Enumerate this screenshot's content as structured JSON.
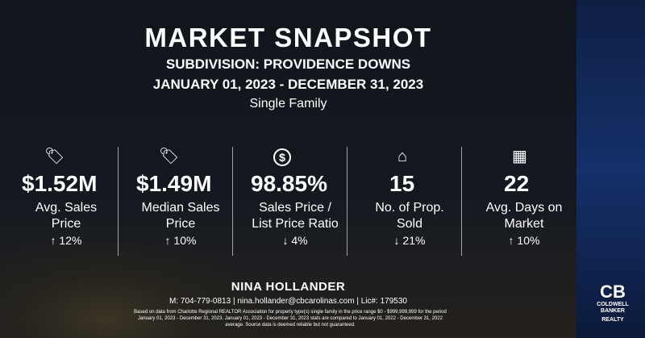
{
  "title": "MARKET SNAPSHOT",
  "subdivision": "SUBDIVISION: PROVIDENCE DOWNS",
  "period": "JANUARY 01, 2023 - DECEMBER 31, 2023",
  "property_type": "Single Family",
  "stats": [
    {
      "icon": "tag-icon",
      "glyph": "⌂",
      "value": "$1.52M",
      "label": "Avg. Sales Price",
      "change": "↑ 12%"
    },
    {
      "icon": "tag-icon",
      "glyph": "⌂",
      "value": "$1.49M",
      "label": "Median Sales Price",
      "change": "↑ 10%"
    },
    {
      "icon": "dollar-circle-icon",
      "glyph": "$",
      "value": "98.85%",
      "label": "Sales Price / List Price Ratio",
      "change": "↓ 4%"
    },
    {
      "icon": "home-icon",
      "glyph": "⌂",
      "value": "15",
      "label": "No. of Prop. Sold",
      "change": "↓ 21%"
    },
    {
      "icon": "calendar-icon",
      "glyph": "▦",
      "value": "22",
      "label": "Avg. Days on Market",
      "change": "↑ 10%"
    }
  ],
  "agent": {
    "name": "NINA HOLLANDER",
    "contact": "M: 704-779-0813 | nina.hollander@cbcarolinas.com | Lic#: 179530"
  },
  "disclaimer": "Based on data from Charlotte Regional REALTOR Association for property type(s) single family in the price range $0 - $999,999,999 for the period January 01, 2023 - December 31, 2023. January 01, 2023 - December 31, 2023 stats are compared to January 01, 2022 - December 31, 2022 average. Source data is deemed reliable but not guaranteed.",
  "logo": {
    "mark": "CB",
    "line1": "COLDWELL",
    "line2": "BANKER",
    "line3": "REALTY"
  }
}
